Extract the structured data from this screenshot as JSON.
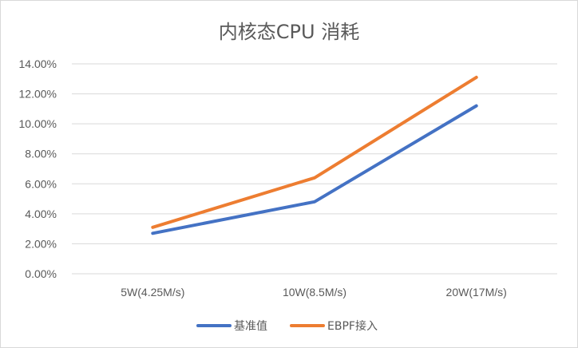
{
  "chart_data": {
    "type": "line",
    "title": "内核态CPU 消耗",
    "categories": [
      "5W(4.25M/s)",
      "10W(8.5M/s)",
      "20W(17M/s)"
    ],
    "y_ticks": [
      "0.00%",
      "2.00%",
      "4.00%",
      "6.00%",
      "8.00%",
      "10.00%",
      "12.00%",
      "14.00%"
    ],
    "ylim": [
      0,
      14
    ],
    "y_unit": "%",
    "grid": true,
    "legend_position": "bottom",
    "series": [
      {
        "name": "基准值",
        "values": [
          2.7,
          4.8,
          11.2
        ],
        "color": "#4472c4"
      },
      {
        "name": "EBPF接入",
        "values": [
          3.1,
          6.4,
          13.1
        ],
        "color": "#ed7d31"
      }
    ],
    "gridline_color": "#d9d9d9",
    "text_color": "#595959"
  }
}
